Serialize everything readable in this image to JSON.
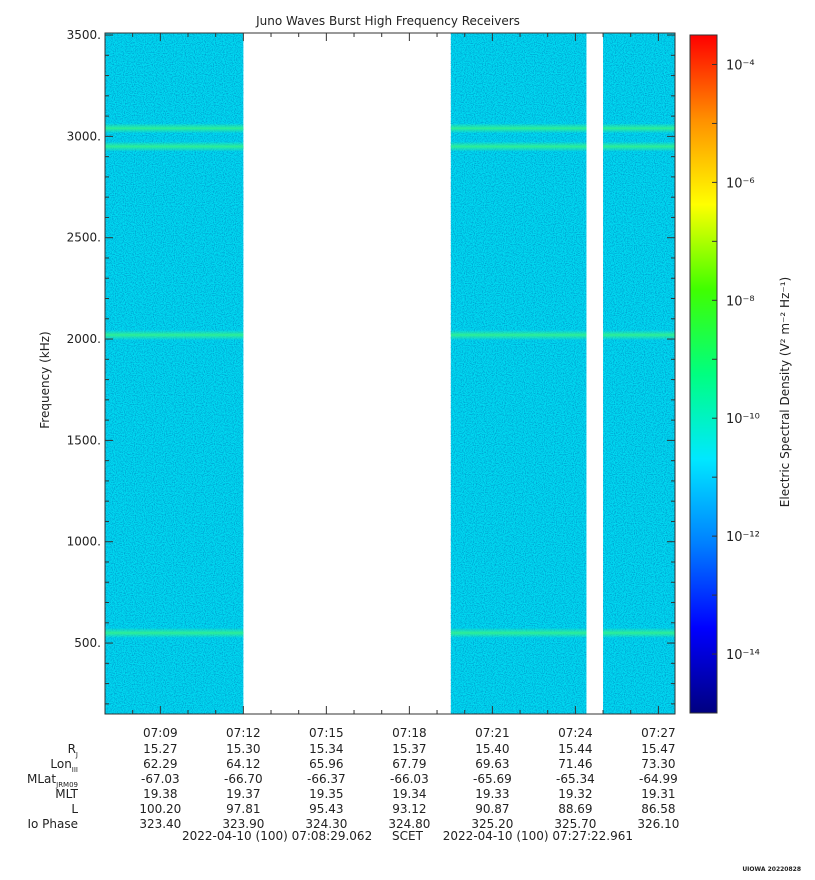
{
  "chart_data": {
    "type": "heatmap",
    "title": "Juno Waves Burst High Frequency Receivers",
    "ylabel": "Frequency (kHz)",
    "ylim": [
      150,
      3510
    ],
    "y_ticks": [
      "500.",
      "1000.",
      "1500.",
      "2000.",
      "2500.",
      "3000.",
      "3500."
    ],
    "y_tick_values": [
      500,
      1000,
      1500,
      2000,
      2500,
      3000,
      3500
    ],
    "x_range_minutes": [
      7.0,
      27.6
    ],
    "x_ticks": [
      "07:09",
      "07:12",
      "07:15",
      "07:18",
      "07:21",
      "07:24",
      "07:27"
    ],
    "x_tick_values": [
      9,
      12,
      15,
      18,
      21,
      24,
      27
    ],
    "data_intervals_minutes": [
      [
        7.0,
        12.0
      ],
      [
        19.5,
        24.4
      ],
      [
        25.0,
        27.6
      ]
    ],
    "emission_bands_khz": [
      3040,
      2950,
      2020,
      550
    ],
    "background_level": "10^-12",
    "colorbar": {
      "label": "Electric Spectral Density (V² m⁻² Hz⁻¹)",
      "exponent_min": -15,
      "exponent_max": -3.5,
      "ticks": [
        "10⁻⁴",
        "10⁻⁶",
        "10⁻⁸",
        "10⁻¹⁰",
        "10⁻¹²",
        "10⁻¹⁴"
      ],
      "tick_exponents": [
        -4,
        -6,
        -8,
        -10,
        -12,
        -14
      ],
      "colors": [
        "#000080",
        "#0000ff",
        "#0080ff",
        "#00e8ff",
        "#00ff80",
        "#40ff00",
        "#ffff00",
        "#ff9000",
        "#ff0000"
      ]
    },
    "ephemeris_rows": [
      {
        "label": "R",
        "sub": "J",
        "values": [
          "15.27",
          "15.30",
          "15.34",
          "15.37",
          "15.40",
          "15.44",
          "15.47"
        ]
      },
      {
        "label": "Lon",
        "sub": "III",
        "values": [
          "62.29",
          "64.12",
          "65.96",
          "67.79",
          "69.63",
          "71.46",
          "73.30"
        ]
      },
      {
        "label": "MLat",
        "sub": "JRM09",
        "values": [
          "-67.03",
          "-66.70",
          "-66.37",
          "-66.03",
          "-65.69",
          "-65.34",
          "-64.99"
        ]
      },
      {
        "label": "MLT",
        "sub": "",
        "values": [
          "19.38",
          "19.37",
          "19.35",
          "19.34",
          "19.33",
          "19.32",
          "19.31"
        ]
      },
      {
        "label": "L",
        "sub": "",
        "values": [
          "100.20",
          "97.81",
          "95.43",
          "93.12",
          "90.87",
          "88.69",
          "86.58"
        ]
      },
      {
        "label": "Io Phase",
        "sub": "",
        "values": [
          "323.40",
          "323.90",
          "324.30",
          "324.80",
          "325.20",
          "325.70",
          "326.10"
        ]
      }
    ]
  },
  "footer": {
    "start": "2022-04-10 (100) 07:08:29.062",
    "frame": "SCET",
    "end": "2022-04-10 (100) 07:27:22.961"
  },
  "stamp": "UIOWA 20220828"
}
